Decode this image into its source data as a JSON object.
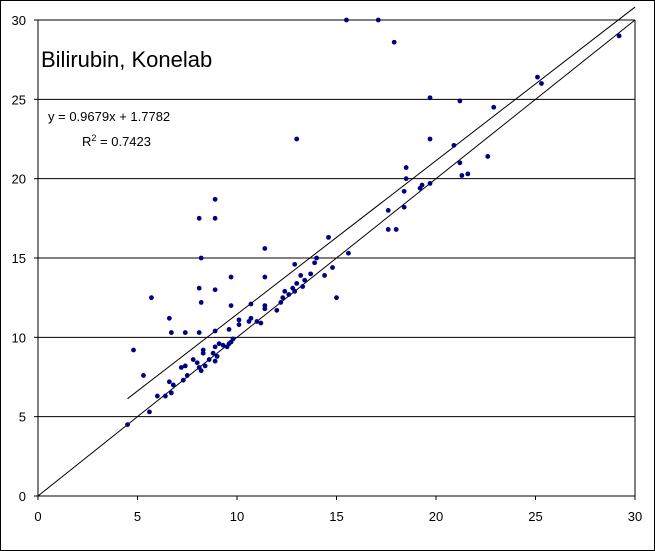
{
  "chart_data": {
    "type": "scatter",
    "title": "Bilirubin, Konelab",
    "xlabel": "",
    "ylabel": "",
    "xlim": [
      0,
      30
    ],
    "ylim": [
      0,
      30
    ],
    "x_ticks": [
      0,
      5,
      10,
      15,
      20,
      25,
      30
    ],
    "y_ticks": [
      0,
      5,
      10,
      15,
      20,
      25,
      30
    ],
    "gridlines": "horizontal",
    "trendline_equation": "y = 0.9679x + 1.7782",
    "r_squared_label": "R",
    "r_squared_exponent": "2",
    "r_squared_value": " = 0.7423",
    "trendline": {
      "slope": 0.9679,
      "intercept": 1.7782,
      "x_range": [
        4.5,
        30
      ]
    },
    "identity_line": {
      "x_range": [
        0,
        30
      ]
    },
    "colors": {
      "points": "#000080",
      "lines": "#000000",
      "grid": "#000000"
    },
    "points": [
      [
        4.5,
        4.5
      ],
      [
        4.8,
        9.2
      ],
      [
        5.3,
        7.6
      ],
      [
        5.6,
        5.3
      ],
      [
        5.7,
        12.5
      ],
      [
        6.0,
        6.3
      ],
      [
        6.4,
        6.3
      ],
      [
        6.6,
        7.2
      ],
      [
        6.7,
        6.5
      ],
      [
        6.8,
        7.0
      ],
      [
        6.6,
        11.2
      ],
      [
        6.7,
        10.3
      ],
      [
        7.2,
        8.1
      ],
      [
        7.3,
        7.3
      ],
      [
        7.4,
        8.2
      ],
      [
        7.5,
        7.6
      ],
      [
        7.4,
        10.3
      ],
      [
        7.8,
        8.6
      ],
      [
        8.0,
        8.4
      ],
      [
        8.1,
        8.1
      ],
      [
        8.2,
        7.9
      ],
      [
        8.3,
        9.0
      ],
      [
        8.3,
        9.2
      ],
      [
        8.4,
        8.2
      ],
      [
        8.1,
        10.3
      ],
      [
        8.2,
        12.2
      ],
      [
        8.1,
        13.1
      ],
      [
        8.2,
        15.0
      ],
      [
        8.1,
        17.5
      ],
      [
        8.6,
        8.6
      ],
      [
        8.8,
        9.0
      ],
      [
        8.9,
        8.5
      ],
      [
        8.9,
        9.4
      ],
      [
        9.0,
        8.8
      ],
      [
        9.1,
        9.6
      ],
      [
        8.9,
        10.4
      ],
      [
        8.9,
        13.0
      ],
      [
        8.9,
        17.5
      ],
      [
        8.9,
        18.7
      ],
      [
        9.3,
        9.5
      ],
      [
        9.5,
        9.4
      ],
      [
        9.6,
        9.6
      ],
      [
        9.7,
        9.7
      ],
      [
        9.8,
        9.9
      ],
      [
        9.6,
        10.5
      ],
      [
        9.7,
        12.0
      ],
      [
        9.7,
        13.8
      ],
      [
        10.1,
        10.8
      ],
      [
        10.1,
        11.1
      ],
      [
        10.6,
        11.0
      ],
      [
        10.7,
        11.2
      ],
      [
        10.7,
        12.1
      ],
      [
        11.0,
        11.0
      ],
      [
        11.2,
        10.9
      ],
      [
        11.4,
        11.8
      ],
      [
        11.4,
        12.0
      ],
      [
        11.4,
        13.8
      ],
      [
        11.4,
        15.6
      ],
      [
        12.0,
        11.7
      ],
      [
        12.2,
        12.2
      ],
      [
        12.3,
        12.5
      ],
      [
        12.4,
        12.9
      ],
      [
        12.6,
        12.7
      ],
      [
        12.8,
        13.1
      ],
      [
        12.9,
        12.9
      ],
      [
        13.0,
        13.4
      ],
      [
        12.9,
        14.6
      ],
      [
        13.0,
        22.5
      ],
      [
        13.2,
        13.9
      ],
      [
        13.3,
        13.2
      ],
      [
        13.4,
        13.6
      ],
      [
        13.7,
        14.0
      ],
      [
        13.9,
        14.7
      ],
      [
        14.0,
        15.0
      ],
      [
        14.4,
        13.9
      ],
      [
        14.6,
        16.3
      ],
      [
        14.8,
        14.4
      ],
      [
        15.0,
        12.5
      ],
      [
        15.6,
        15.3
      ],
      [
        15.5,
        30.0
      ],
      [
        17.1,
        30.0
      ],
      [
        17.6,
        16.8
      ],
      [
        17.6,
        18.0
      ],
      [
        17.9,
        28.6
      ],
      [
        18.0,
        16.8
      ],
      [
        18.4,
        18.2
      ],
      [
        18.4,
        19.2
      ],
      [
        18.5,
        20.0
      ],
      [
        18.5,
        20.7
      ],
      [
        19.2,
        19.4
      ],
      [
        19.3,
        19.6
      ],
      [
        19.7,
        19.7
      ],
      [
        19.7,
        22.5
      ],
      [
        19.7,
        25.1
      ],
      [
        20.9,
        22.1
      ],
      [
        21.2,
        21.0
      ],
      [
        21.3,
        20.2
      ],
      [
        21.2,
        24.9
      ],
      [
        21.6,
        20.3
      ],
      [
        22.6,
        21.4
      ],
      [
        22.9,
        24.5
      ],
      [
        25.1,
        26.4
      ],
      [
        25.3,
        26.0
      ],
      [
        29.2,
        29.0
      ]
    ]
  }
}
